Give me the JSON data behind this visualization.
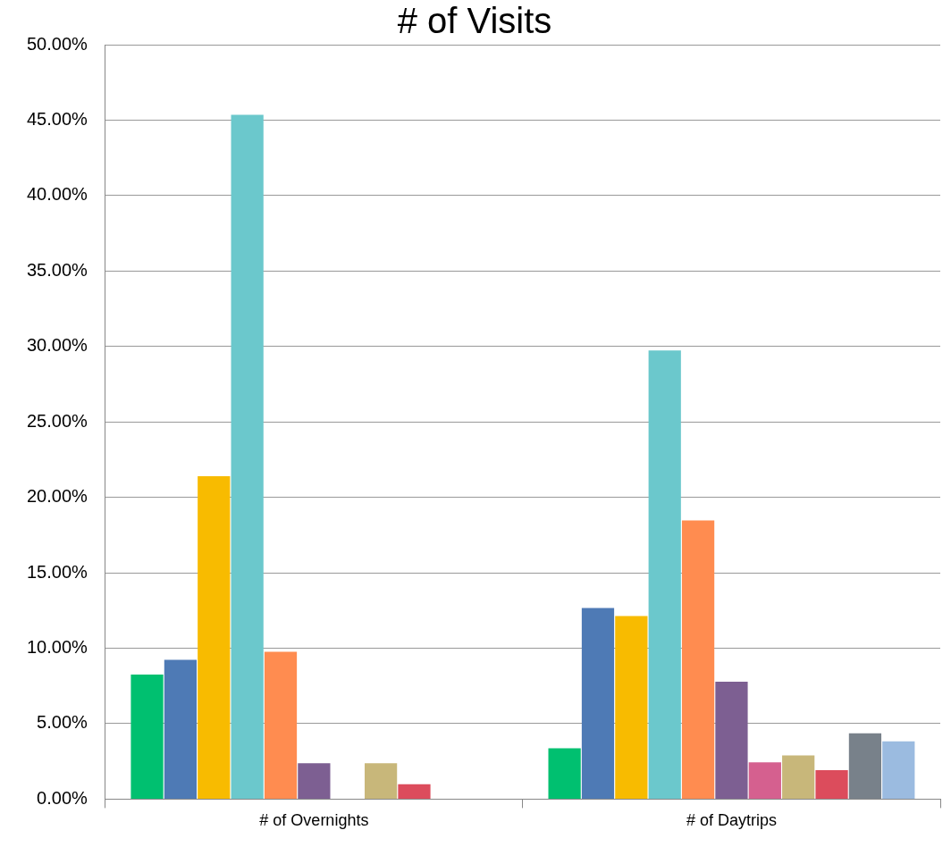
{
  "chart_data": {
    "type": "bar",
    "title": "# of Visits",
    "categories": [
      "# of Overnights",
      "# of Daytrips"
    ],
    "series": [
      {
        "color": "#00c070",
        "values": [
          8.25,
          3.37
        ]
      },
      {
        "color": "#4e7ab5",
        "values": [
          9.23,
          12.66
        ]
      },
      {
        "color": "#f8bb00",
        "values": [
          21.4,
          12.14
        ]
      },
      {
        "color": "#6bc8cc",
        "values": [
          45.35,
          29.73
        ]
      },
      {
        "color": "#ff8c50",
        "values": [
          9.76,
          18.47
        ]
      },
      {
        "color": "#7d5f92",
        "values": [
          2.38,
          7.78
        ]
      },
      {
        "color": "#d5608f",
        "values": [
          null,
          2.44
        ]
      },
      {
        "color": "#c8b77a",
        "values": [
          2.38,
          2.9
        ]
      },
      {
        "color": "#dc4c5c",
        "values": [
          0.99,
          1.92
        ]
      },
      {
        "color": "#78818a",
        "values": [
          null,
          4.36
        ]
      },
      {
        "color": "#9bbbe0",
        "values": [
          null,
          3.83
        ]
      }
    ],
    "ylim": [
      0,
      50
    ],
    "yticks": [
      {
        "value": 0,
        "label": "0.00%"
      },
      {
        "value": 5,
        "label": "5.00%"
      },
      {
        "value": 10,
        "label": "10.00%"
      },
      {
        "value": 15,
        "label": "15.00%"
      },
      {
        "value": 20,
        "label": "20.00%"
      },
      {
        "value": 25,
        "label": "25.00%"
      },
      {
        "value": 30,
        "label": "30.00%"
      },
      {
        "value": 35,
        "label": "35.00%"
      },
      {
        "value": 40,
        "label": "40.00%"
      },
      {
        "value": 45,
        "label": "45.00%"
      },
      {
        "value": 50,
        "label": "50.00%"
      }
    ],
    "grid": "y",
    "legend": false
  }
}
